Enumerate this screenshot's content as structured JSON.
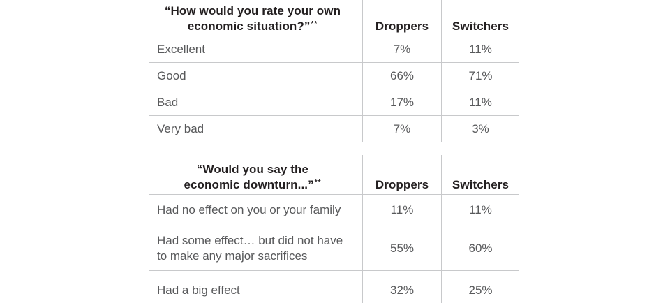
{
  "colors": {
    "background": "#ffffff",
    "header_text": "#231f20",
    "body_text": "#58595b",
    "grid_line": "#c8c9cb"
  },
  "tables": [
    {
      "header": {
        "title_line1": "“How would you rate your own",
        "title_line2": "economic situation?”",
        "footnote_marker": "**",
        "columns": [
          "Droppers",
          "Switchers"
        ]
      },
      "rows": [
        {
          "label": "Excellent",
          "droppers": "7%",
          "switchers": "11%"
        },
        {
          "label": "Good",
          "droppers": "66%",
          "switchers": "71%"
        },
        {
          "label": "Bad",
          "droppers": "17%",
          "switchers": "11%"
        },
        {
          "label": "Very bad",
          "droppers": "7%",
          "switchers": "3%"
        }
      ]
    },
    {
      "header": {
        "title_line1": "“Would you say the",
        "title_line2": "economic downturn...”",
        "footnote_marker": "**",
        "columns": [
          "Droppers",
          "Switchers"
        ]
      },
      "rows": [
        {
          "label": "Had no effect on you or your family",
          "droppers": "11%",
          "switchers": "11%"
        },
        {
          "label": "Had some effect… but did not have to make any major sacrifices",
          "droppers": "55%",
          "switchers": "60%"
        },
        {
          "label": "Had a big effect",
          "droppers": "32%",
          "switchers": "25%"
        }
      ]
    }
  ],
  "chart_data": [
    {
      "type": "table",
      "title": "“How would you rate your own economic situation?”**",
      "columns": [
        "Droppers",
        "Switchers"
      ],
      "rows": [
        {
          "label": "Excellent",
          "values": [
            7,
            11
          ]
        },
        {
          "label": "Good",
          "values": [
            66,
            71
          ]
        },
        {
          "label": "Bad",
          "values": [
            17,
            11
          ]
        },
        {
          "label": "Very bad",
          "values": [
            7,
            3
          ]
        }
      ],
      "unit": "%"
    },
    {
      "type": "table",
      "title": "“Would you say the economic downturn...”**",
      "columns": [
        "Droppers",
        "Switchers"
      ],
      "rows": [
        {
          "label": "Had no effect on you or your family",
          "values": [
            11,
            11
          ]
        },
        {
          "label": "Had some effect… but did not have to make any major sacrifices",
          "values": [
            55,
            60
          ]
        },
        {
          "label": "Had a big effect",
          "values": [
            32,
            25
          ]
        }
      ],
      "unit": "%"
    }
  ]
}
